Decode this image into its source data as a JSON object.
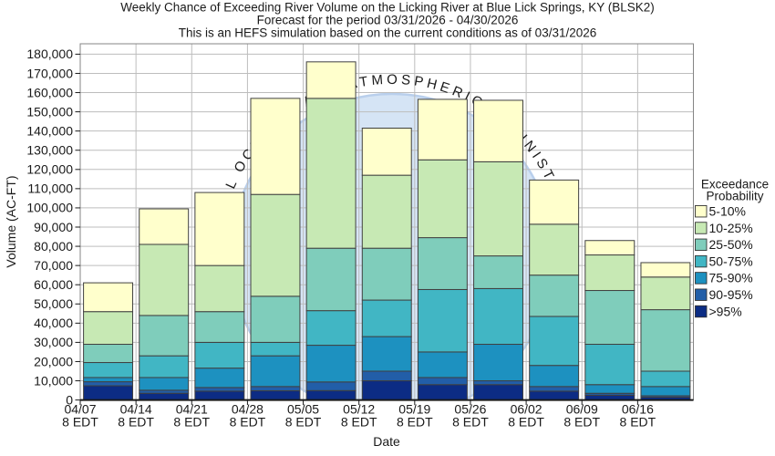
{
  "titles": {
    "line1": "Weekly Chance of Exceeding River Volume on the Licking River at Blue Lick Springs, KY (BLSK2)",
    "line2": "Forecast for the period 03/31/2026 - 04/30/2026",
    "line3": "This is an HEFS simulation based on the current conditions as of 03/31/2026"
  },
  "watermark": {
    "text": "NATIONAL OCEANIC AND ATMOSPHERIC ADMINISTRATION",
    "visible_fragment": "ATMOSPHER"
  },
  "legend": {
    "title_line1": "Exceedance",
    "title_line2": "Probability"
  },
  "chart_data": {
    "type": "bar",
    "stacked": true,
    "title": "Weekly Chance of Exceeding River Volume on the Licking River at Blue Lick Springs, KY (BLSK2)",
    "xlabel": "Date",
    "ylabel": "Volume (AC-FT)",
    "ylim": [
      0,
      185700
    ],
    "ytick_step": 10000,
    "ytick_max": 180000,
    "grid": true,
    "legend_title": "Exceedance Probability",
    "legend_position": "right",
    "legend_order_top_down": [
      "5-10%",
      "10-25%",
      "25-50%",
      "50-75%",
      "75-90%",
      "90-95%",
      ">95%"
    ],
    "categories": [
      {
        "date": "04/07",
        "time": "8 EDT"
      },
      {
        "date": "04/14",
        "time": "8 EDT"
      },
      {
        "date": "04/21",
        "time": "8 EDT"
      },
      {
        "date": "04/28",
        "time": "8 EDT"
      },
      {
        "date": "05/05",
        "time": "8 EDT"
      },
      {
        "date": "05/12",
        "time": "8 EDT"
      },
      {
        "date": "05/19",
        "time": "8 EDT"
      },
      {
        "date": "05/26",
        "time": "8 EDT"
      },
      {
        "date": "06/02",
        "time": "8 EDT"
      },
      {
        "date": "06/09",
        "time": "8 EDT"
      },
      {
        "date": "06/16",
        "time": "8 EDT"
      }
    ],
    "series": [
      {
        "name": ">95%",
        "color": "#0c2c84",
        "values": [
          7400,
          3500,
          4600,
          4800,
          4900,
          10000,
          8000,
          8000,
          4600,
          2500,
          1500
        ]
      },
      {
        "name": "90-95%",
        "color": "#225ea8",
        "values": [
          2100,
          1600,
          1900,
          2200,
          4500,
          5000,
          3700,
          2000,
          2400,
          1000,
          700
        ]
      },
      {
        "name": "75-90%",
        "color": "#1d91c0",
        "values": [
          2200,
          6600,
          10100,
          16000,
          19100,
          18000,
          13300,
          19000,
          11000,
          4500,
          4800
        ]
      },
      {
        "name": "50-75%",
        "color": "#41b6c4",
        "values": [
          7800,
          11300,
          13400,
          7000,
          18000,
          19000,
          32500,
          29000,
          25500,
          21000,
          8000
        ]
      },
      {
        "name": "25-50%",
        "color": "#7fcdbb",
        "values": [
          9500,
          21000,
          16000,
          24000,
          32500,
          27000,
          27000,
          17000,
          21500,
          28000,
          32000
        ]
      },
      {
        "name": "10-25%",
        "color": "#c7e9b4",
        "values": [
          17000,
          37000,
          24000,
          53000,
          78000,
          38000,
          40500,
          49000,
          26500,
          18500,
          17000
        ]
      },
      {
        "name": "5-10%",
        "color": "#ffffcc",
        "values": [
          15000,
          18500,
          38000,
          50000,
          19000,
          24500,
          31500,
          32000,
          23000,
          7500,
          7500
        ]
      }
    ],
    "totals": [
      61000,
      99500,
      108000,
      157000,
      176000,
      141500,
      156500,
      156000,
      114500,
      83000,
      71500
    ]
  }
}
